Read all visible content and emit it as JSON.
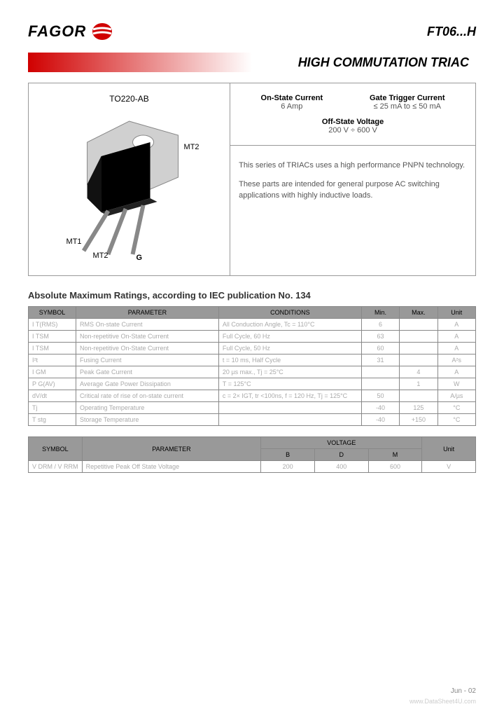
{
  "header": {
    "logo_text": "FAGOR",
    "part_number": "FT06...H"
  },
  "title": "HIGH COMMUTATION TRIAC",
  "package": {
    "name": "TO220-AB",
    "pins": {
      "mt1": "MT1",
      "mt2_top": "MT2",
      "mt2_bottom": "MT2",
      "g": "G"
    }
  },
  "specs_panel": {
    "on_state": {
      "label": "On-State Current",
      "value": "6 Amp"
    },
    "gate_trigger": {
      "label": "Gate Trigger Current",
      "value": "≤ 25 mA to ≤ 50 mA"
    },
    "off_state": {
      "label": "Off-State Voltage",
      "value": "200 V ÷ 600 V"
    },
    "desc1": "This series of TRIACs uses a high performance PNPN technology.",
    "desc2": "These parts are intended for general purpose AC switching applications with highly inductive loads."
  },
  "section1_title": "Absolute Maximum Ratings, according to IEC publication No. 134",
  "table1": {
    "headers": [
      "SYMBOL",
      "PARAMETER",
      "CONDITIONS",
      "Min.",
      "Max.",
      "Unit"
    ],
    "rows": [
      [
        "I T(RMS)",
        "RMS On-state Current",
        "All Conduction Angle, Tc = 110°C",
        "6",
        "",
        "A"
      ],
      [
        "I TSM",
        "Non-repetitive On-State Current",
        "Full Cycle, 60 Hz",
        "63",
        "",
        "A"
      ],
      [
        "I TSM",
        "Non-repetitive On-State Current",
        "Full Cycle, 50 Hz",
        "60",
        "",
        "A"
      ],
      [
        "I²t",
        "Fusing Current",
        "t = 10 ms, Half Cycle",
        "31",
        "",
        "A²s"
      ],
      [
        "I GM",
        "Peak Gate Current",
        "20 µs max., Tj = 25°C",
        "",
        "4",
        "A"
      ],
      [
        "P G(AV)",
        "Average Gate Power Dissipation",
        "T = 125°C",
        "",
        "1",
        "W"
      ],
      [
        "dV/dt",
        "Critical rate of rise of on-state current",
        "c = 2× IGT, tr <100ns, f = 120 Hz, Tj = 125°C",
        "50",
        "",
        "A/µs"
      ],
      [
        "Tj",
        "Operating Temperature",
        "",
        "-40",
        "125",
        "°C"
      ],
      [
        "T stg",
        "Storage Temperature",
        "",
        "-40",
        "+150",
        "°C"
      ]
    ]
  },
  "table2": {
    "headers": [
      "SYMBOL",
      "PARAMETER",
      "VOLTAGE",
      "Unit"
    ],
    "sub_headers": [
      "B",
      "D",
      "M"
    ],
    "rows": [
      [
        "V DRM / V RRM",
        "Repetitive Peak Off State Voltage",
        "200",
        "400",
        "600",
        "V"
      ]
    ]
  },
  "footer": {
    "date": "Jun - 02",
    "source": "www.DataSheet4U.com"
  },
  "colors": {
    "red": "#d00000",
    "grey_header": "#999999",
    "border": "#888888",
    "black": "#000000"
  }
}
